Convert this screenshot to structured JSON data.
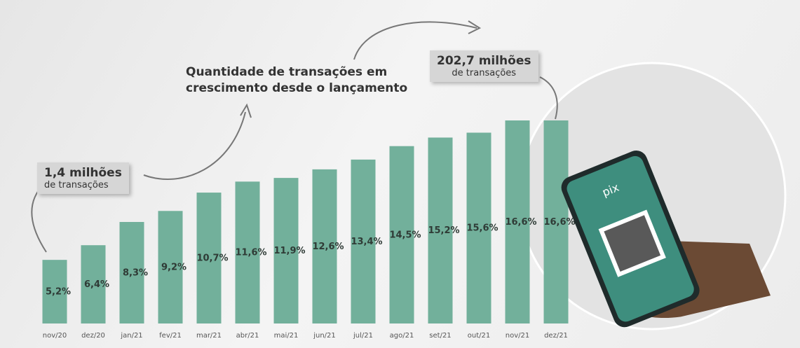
{
  "chart_data": {
    "type": "bar",
    "title": "Quantidade de transações em crescimento desde o lançamento",
    "categories": [
      "nov/20",
      "dez/20",
      "jan/21",
      "fev/21",
      "mar/21",
      "abr/21",
      "mai/21",
      "jun/21",
      "jul/21",
      "ago/21",
      "set/21",
      "out/21",
      "nov/21",
      "dez/21"
    ],
    "values": [
      5.2,
      6.4,
      8.3,
      9.2,
      10.7,
      11.6,
      11.9,
      12.6,
      13.4,
      14.5,
      15.2,
      15.6,
      16.6,
      16.6
    ],
    "value_labels": [
      "5,2%",
      "6,4%",
      "8,3%",
      "9,2%",
      "10,7%",
      "11,6%",
      "11,9%",
      "12,6%",
      "13,4%",
      "14,5%",
      "15,2%",
      "15,6%",
      "16,6%",
      "16,6%"
    ],
    "color": "#72b09b",
    "annotations": [
      {
        "text": "1,4 milhões",
        "subtext": "de transações"
      },
      {
        "text": "202,7 milhões",
        "subtext": "de transações"
      }
    ]
  },
  "phone": {
    "logo": "pix"
  }
}
